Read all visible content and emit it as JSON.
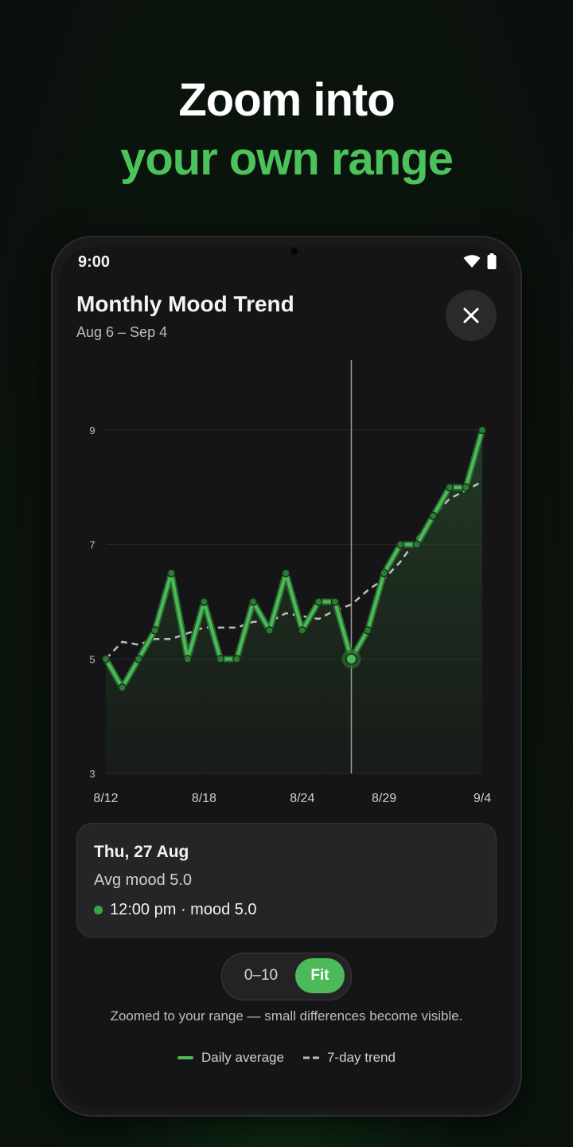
{
  "promo": {
    "line1": "Zoom into",
    "line2": "your own range"
  },
  "status_bar": {
    "time": "9:00"
  },
  "header": {
    "title": "Monthly Mood Trend",
    "subtitle": "Aug 6 – Sep 4"
  },
  "chart_data": {
    "type": "line",
    "y_ticks": [
      "9",
      "7",
      "5",
      "3"
    ],
    "ylim": [
      3,
      9
    ],
    "x_tick_labels": [
      "8/12",
      "8/18",
      "8/24",
      "8/29",
      "9/4"
    ],
    "series": [
      {
        "name": "Daily average",
        "color": "#4cba58",
        "values": [
          5.0,
          4.5,
          5.0,
          5.5,
          6.5,
          5.0,
          6.0,
          5.0,
          5.0,
          6.0,
          5.5,
          6.5,
          5.5,
          6.0,
          6.0,
          5.0,
          5.5,
          6.5,
          7.0,
          7.0,
          7.5,
          8.0,
          8.0,
          9.0
        ]
      },
      {
        "name": "7-day trend",
        "color": "#bdbdbd",
        "values": [
          5.0,
          5.3,
          5.25,
          5.35,
          5.35,
          5.45,
          5.55,
          5.55,
          5.55,
          5.65,
          5.65,
          5.8,
          5.75,
          5.7,
          5.85,
          5.95,
          6.2,
          6.4,
          6.7,
          7.1,
          7.5,
          7.8,
          7.95,
          8.1
        ]
      }
    ],
    "selected_index": 15,
    "grid": true
  },
  "detail": {
    "date": "Thu, 27 Aug",
    "avg": "Avg mood 5.0",
    "entry": "12:00 pm · mood 5.0"
  },
  "scale_toggle": {
    "option_range": "0–10",
    "option_fit": "Fit",
    "selected": "Fit"
  },
  "zoom_note": "Zoomed to your range — small differences become visible.",
  "legend": {
    "daily": "Daily average",
    "trend": "7-day trend"
  },
  "colors": {
    "accent": "#4cba58",
    "headline_green": "#4cc35a"
  }
}
